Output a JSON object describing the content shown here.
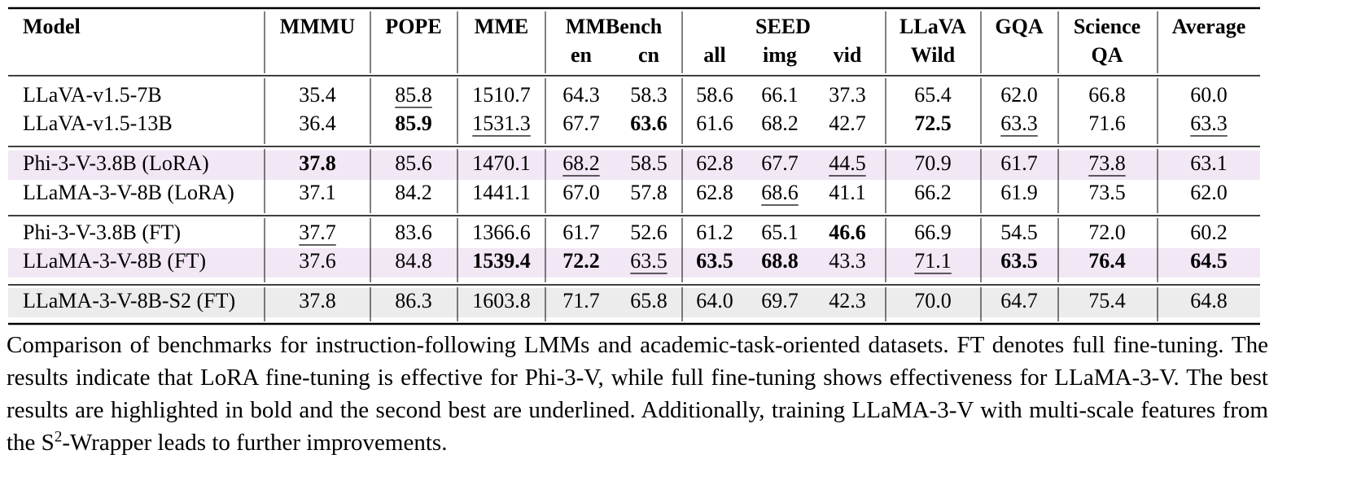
{
  "table": {
    "header_top": [
      "Model",
      "MMMU",
      "POPE",
      "MME",
      "MMBench",
      "SEED",
      "LLaVA",
      "GQA",
      "Science",
      "Average"
    ],
    "header_sub": [
      "en",
      "cn",
      "all",
      "img",
      "vid",
      "Wild",
      "QA"
    ],
    "rows": [
      {
        "model": "LLaVA-v1.5-7B",
        "cells": [
          "35.4",
          "85.8",
          "1510.7",
          "64.3",
          "58.3",
          "58.6",
          "66.1",
          "37.3",
          "65.4",
          "62.0",
          "66.8",
          "60.0"
        ],
        "bold": [],
        "underline": [
          1
        ]
      },
      {
        "model": "LLaVA-v1.5-13B",
        "cells": [
          "36.4",
          "85.9",
          "1531.3",
          "67.7",
          "63.6",
          "61.6",
          "68.2",
          "42.7",
          "72.5",
          "63.3",
          "71.6",
          "63.3"
        ],
        "bold": [
          1,
          4,
          8
        ],
        "underline": [
          2,
          9,
          11
        ]
      },
      {
        "model": "Phi-3-V-3.8B (LoRA)",
        "cells": [
          "37.8",
          "85.6",
          "1470.1",
          "68.2",
          "58.5",
          "62.8",
          "67.7",
          "44.5",
          "70.9",
          "61.7",
          "73.8",
          "63.1"
        ],
        "bold": [
          0
        ],
        "underline": [
          3,
          7,
          10
        ],
        "shade": "#f2e7f5"
      },
      {
        "model": "LLaMA-3-V-8B (LoRA)",
        "cells": [
          "37.1",
          "84.2",
          "1441.1",
          "67.0",
          "57.8",
          "62.8",
          "68.6",
          "41.1",
          "66.2",
          "61.9",
          "73.5",
          "62.0"
        ],
        "bold": [],
        "underline": [
          6
        ]
      },
      {
        "model": "Phi-3-V-3.8B (FT)",
        "cells": [
          "37.7",
          "83.6",
          "1366.6",
          "61.7",
          "52.6",
          "61.2",
          "65.1",
          "46.6",
          "66.9",
          "54.5",
          "72.0",
          "60.2"
        ],
        "bold": [
          7
        ],
        "underline": [
          0
        ]
      },
      {
        "model": "LLaMA-3-V-8B (FT)",
        "cells": [
          "37.6",
          "84.8",
          "1539.4",
          "72.2",
          "63.5",
          "63.5",
          "68.8",
          "43.3",
          "71.1",
          "63.5",
          "76.4",
          "64.5"
        ],
        "bold": [
          2,
          3,
          5,
          6,
          9,
          10,
          11
        ],
        "underline": [
          4,
          8
        ],
        "shade": "#f2e7f5"
      },
      {
        "model": "LLaMA-3-V-8B-S2 (FT)",
        "cells": [
          "37.8",
          "86.3",
          "1603.8",
          "71.7",
          "65.8",
          "64.0",
          "69.7",
          "42.3",
          "70.0",
          "64.7",
          "75.4",
          "64.8"
        ],
        "bold": [],
        "underline": [],
        "shade": "#ececec"
      }
    ]
  },
  "caption": {
    "before": "Comparison of benchmarks for instruction-following LMMs and academic-task-oriented datasets. FT denotes full fine-tuning. The results indicate that LoRA fine-tuning is effective for Phi-3-V, while full fine-tuning shows effectiveness for LLaMA-3-V. The best results are highlighted in bold and the second best are underlined. Additionally, training LLaMA-3-V with multi-scale features from the S",
    "sup": "2",
    "after": "-Wrapper leads to further improvements."
  }
}
